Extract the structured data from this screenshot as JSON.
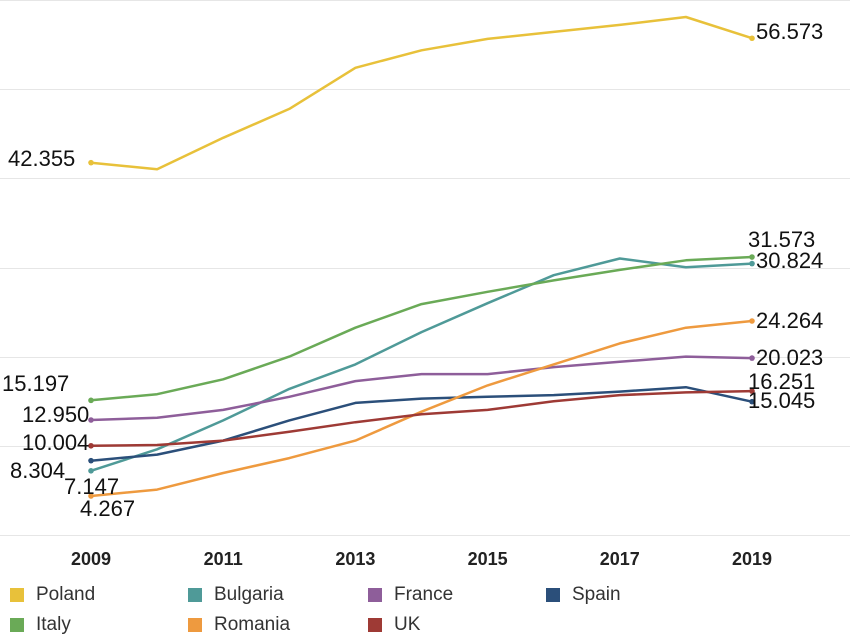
{
  "chart_data": {
    "type": "line",
    "x": [
      2009,
      2010,
      2011,
      2012,
      2013,
      2014,
      2015,
      2016,
      2017,
      2018,
      2019
    ],
    "x_tick_labels": [
      "2009",
      "2011",
      "2013",
      "2015",
      "2017",
      "2019"
    ],
    "grid": "horizontal",
    "legend_placement": "bottom",
    "series": [
      {
        "name": "Poland",
        "color": "#E8C13A",
        "values": [
          42.355,
          41.6,
          45.2,
          48.5,
          53.2,
          55.2,
          56.5,
          57.3,
          58.1,
          59.0,
          56.573
        ],
        "start_label": "42.355",
        "end_label": "56.573"
      },
      {
        "name": "Bulgaria",
        "color": "#4F9A98",
        "values": [
          7.147,
          9.6,
          12.9,
          16.5,
          19.3,
          23.0,
          26.3,
          29.5,
          31.4,
          30.4,
          30.824
        ],
        "start_label": "7.147",
        "end_label": "30.824"
      },
      {
        "name": "France",
        "color": "#8E5E9A",
        "values": [
          12.95,
          13.2,
          14.1,
          15.6,
          17.4,
          18.2,
          18.2,
          19.0,
          19.6,
          20.2,
          20.023
        ],
        "start_label": "12.950",
        "end_label": "20.023"
      },
      {
        "name": "Spain",
        "color": "#2B4F7A",
        "values": [
          8.304,
          9.0,
          10.6,
          12.9,
          14.9,
          15.4,
          15.6,
          15.8,
          16.2,
          16.7,
          15.045
        ],
        "start_label": "8.304",
        "end_label": "15.045"
      },
      {
        "name": "Italy",
        "color": "#6AAA57",
        "values": [
          15.197,
          15.9,
          17.6,
          20.2,
          23.5,
          26.2,
          27.6,
          28.9,
          30.1,
          31.2,
          31.573
        ],
        "start_label": "15.197",
        "end_label": "31.573"
      },
      {
        "name": "Romania",
        "color": "#EE9A3F",
        "values": [
          4.267,
          5.0,
          6.9,
          8.6,
          10.6,
          13.9,
          16.9,
          19.3,
          21.7,
          23.5,
          24.264
        ],
        "start_label": "4.267",
        "end_label": "24.264"
      },
      {
        "name": "UK",
        "color": "#9E3A35",
        "values": [
          10.004,
          10.1,
          10.6,
          11.6,
          12.7,
          13.6,
          14.1,
          15.1,
          15.8,
          16.1,
          16.251
        ],
        "start_label": "10.004",
        "end_label": "16.251"
      }
    ]
  }
}
